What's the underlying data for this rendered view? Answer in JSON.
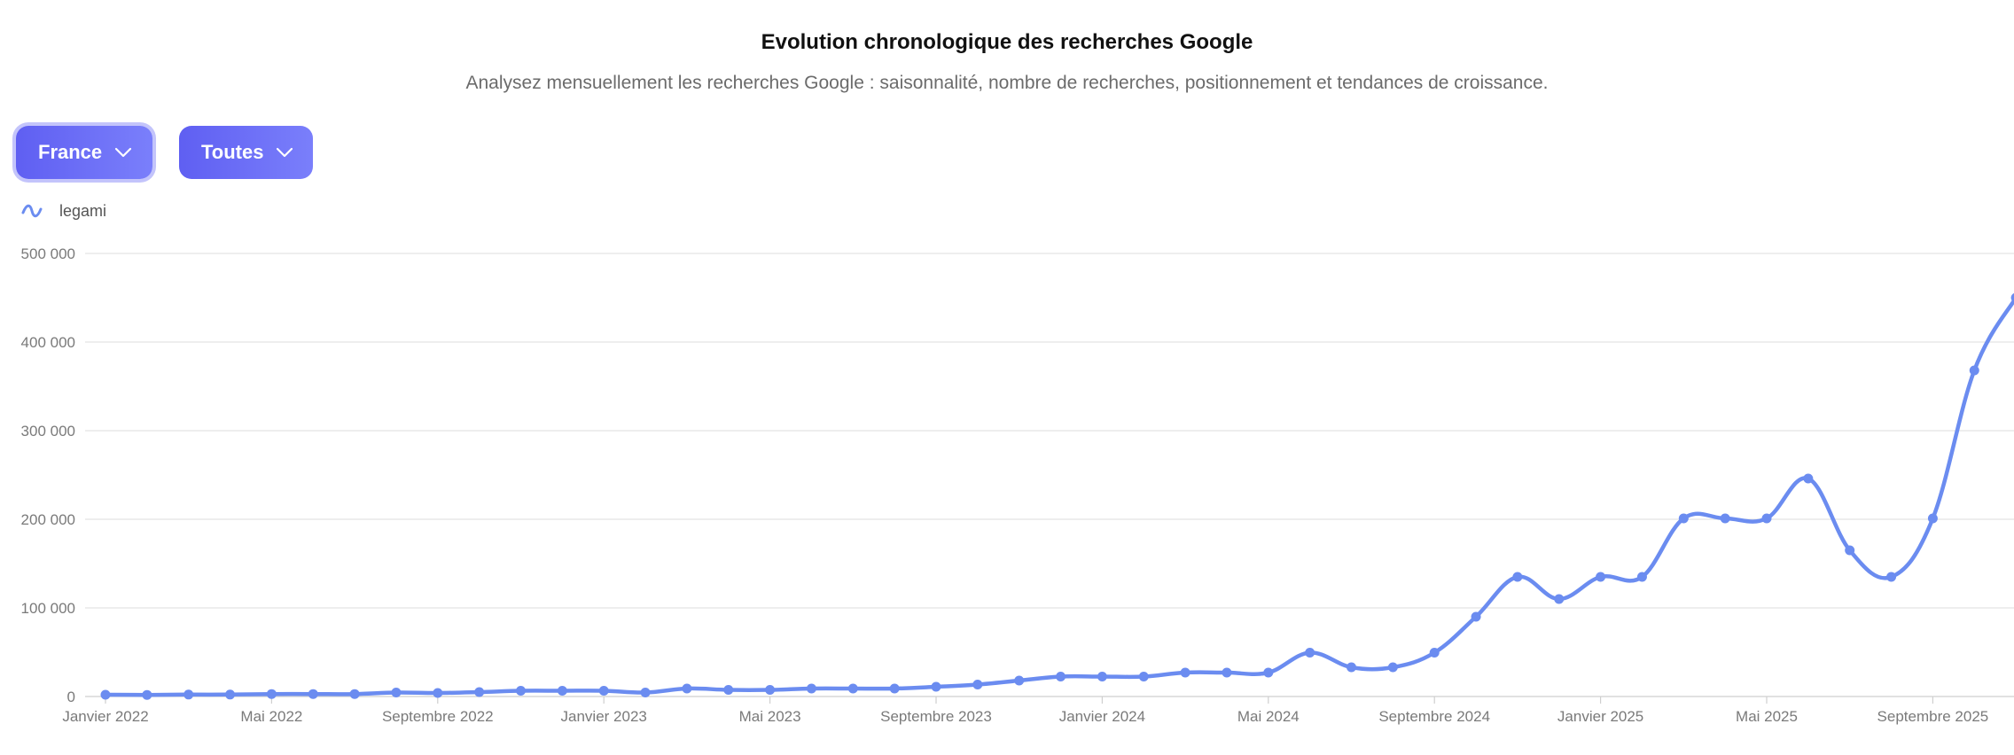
{
  "header": {
    "title": "Evolution chronologique des recherches Google",
    "subtitle": "Analysez mensuellement les recherches Google : saisonnalité, nombre de recherches, positionnement et tendances de croissance."
  },
  "filters": {
    "country": {
      "label": "France",
      "icon": "chevron-down-icon"
    },
    "category": {
      "label": "Toutes",
      "icon": "chevron-down-icon"
    }
  },
  "colors": {
    "accent": "#6b8cf0",
    "button": "#6366f1",
    "grid": "#e3e3e3"
  },
  "chart_data": {
    "type": "line",
    "title": "",
    "xlabel": "",
    "ylabel": "",
    "ylim": [
      0,
      500000
    ],
    "grid": true,
    "legend_position": "top-left",
    "y_ticks": [
      {
        "value": 0,
        "label": "0"
      },
      {
        "value": 100000,
        "label": "100 000"
      },
      {
        "value": 200000,
        "label": "200 000"
      },
      {
        "value": 300000,
        "label": "300 000"
      },
      {
        "value": 400000,
        "label": "400 000"
      },
      {
        "value": 500000,
        "label": "500 000"
      }
    ],
    "x_ticks": [
      {
        "index": 0,
        "label": "Janvier 2022"
      },
      {
        "index": 4,
        "label": "Mai 2022"
      },
      {
        "index": 8,
        "label": "Septembre 2022"
      },
      {
        "index": 12,
        "label": "Janvier 2023"
      },
      {
        "index": 16,
        "label": "Mai 2023"
      },
      {
        "index": 20,
        "label": "Septembre 2023"
      },
      {
        "index": 24,
        "label": "Janvier 2024"
      },
      {
        "index": 28,
        "label": "Mai 2024"
      },
      {
        "index": 32,
        "label": "Septembre 2024"
      },
      {
        "index": 36,
        "label": "Janvier 2025"
      },
      {
        "index": 40,
        "label": "Mai 2025"
      },
      {
        "index": 44,
        "label": "Septembre 2025"
      }
    ],
    "series": [
      {
        "name": "legami",
        "color": "#6b8cf0",
        "values": [
          2000,
          1800,
          2200,
          2200,
          2800,
          2800,
          2800,
          4500,
          4000,
          5000,
          6500,
          6500,
          6500,
          4500,
          9000,
          7500,
          7500,
          9000,
          9000,
          9000,
          11000,
          13500,
          18000,
          22500,
          22500,
          22500,
          27000,
          27000,
          27000,
          49500,
          33000,
          33000,
          49500,
          90000,
          135000,
          110000,
          135000,
          135000,
          201000,
          201000,
          201000,
          246000,
          165000,
          135000,
          201000,
          368000,
          450000
        ]
      }
    ]
  }
}
